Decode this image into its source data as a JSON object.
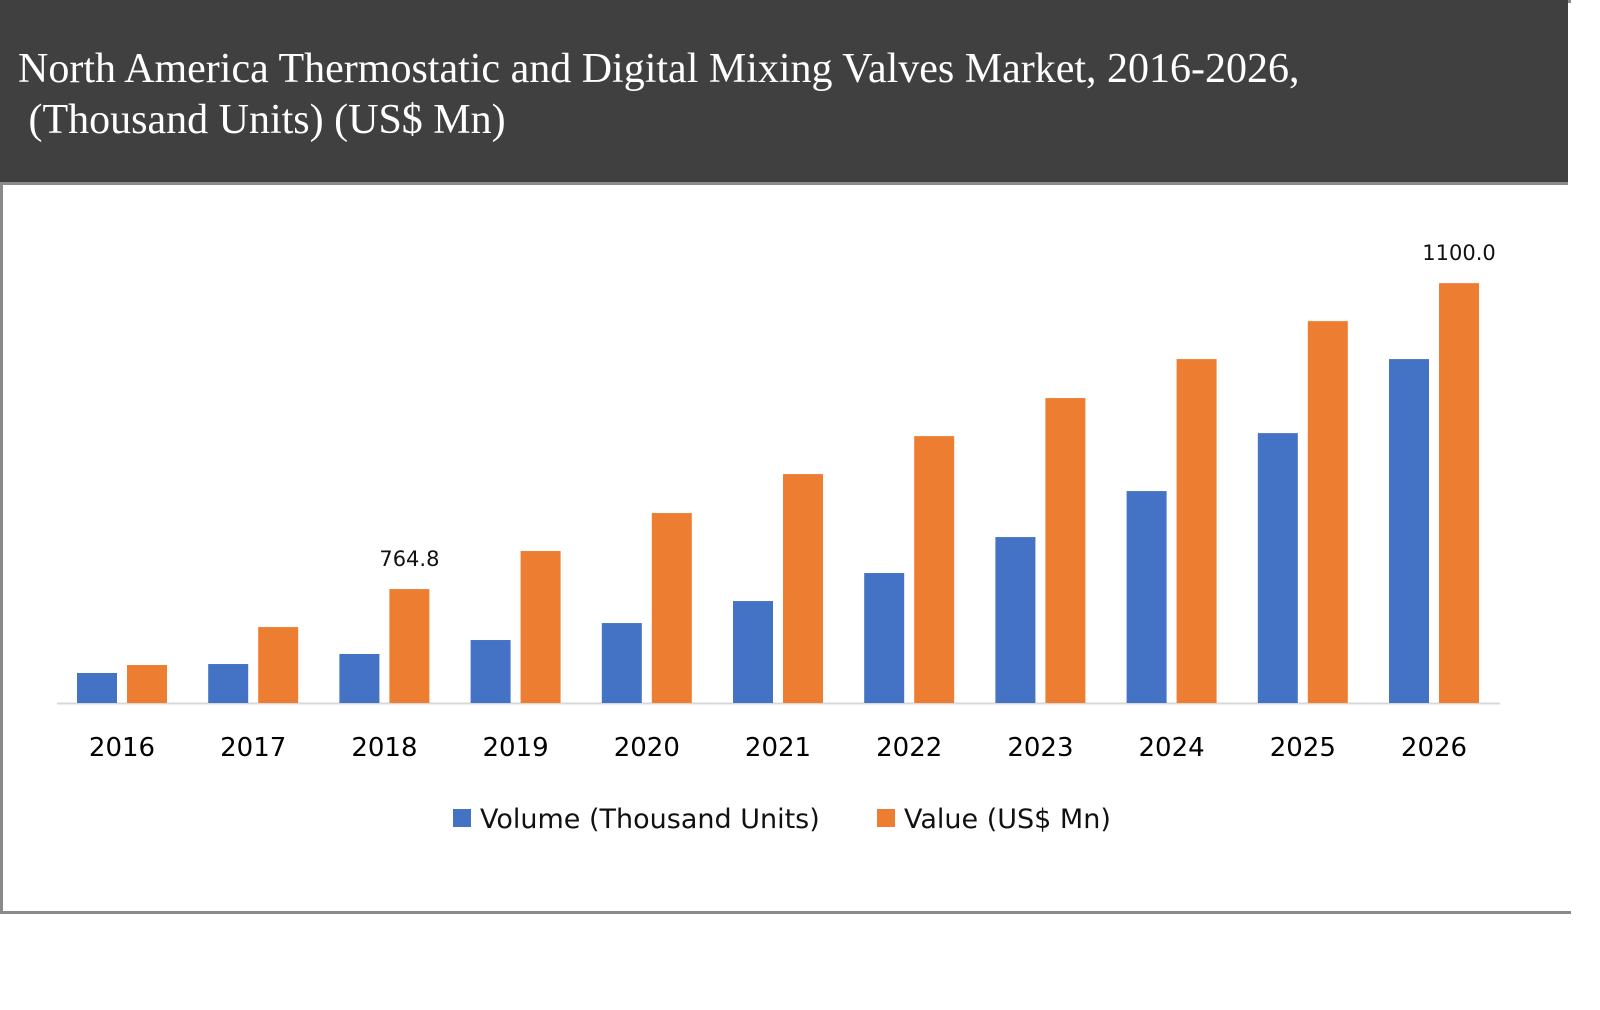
{
  "chart_data": {
    "type": "bar",
    "title": "North America Thermostatic and Digital Mixing Valves Market, 2016-2026,\n (Thousand Units) (US$ Mn)",
    "categories": [
      "2016",
      "2017",
      "2018",
      "2019",
      "2020",
      "2021",
      "2022",
      "2023",
      "2024",
      "2025",
      "2026"
    ],
    "series": [
      {
        "name": "Volume (Thousand Units)",
        "color": "#4472C4",
        "values": [
          672.9,
          682.7,
          693.7,
          709.0,
          727.6,
          751.7,
          782.4,
          821.8,
          872.2,
          935.7,
          1016.8
        ]
      },
      {
        "name": "Value (US$ Mn)",
        "color": "#ED7D31",
        "values": [
          681.6,
          723.2,
          764.8,
          806.5,
          848.1,
          890.8,
          932.4,
          974.1,
          1016.8,
          1058.4,
          1100.0
        ]
      }
    ],
    "data_labels": [
      {
        "series": 1,
        "category": "2018",
        "text": "764.8"
      },
      {
        "series": 1,
        "category": "2026",
        "text": "1100.0"
      }
    ],
    "xlabel": "",
    "ylabel": "",
    "ylim": [
      640,
      1167
    ],
    "y_axis_visible": false,
    "grid": false,
    "legend": "bottom",
    "header_color": "#404040"
  }
}
